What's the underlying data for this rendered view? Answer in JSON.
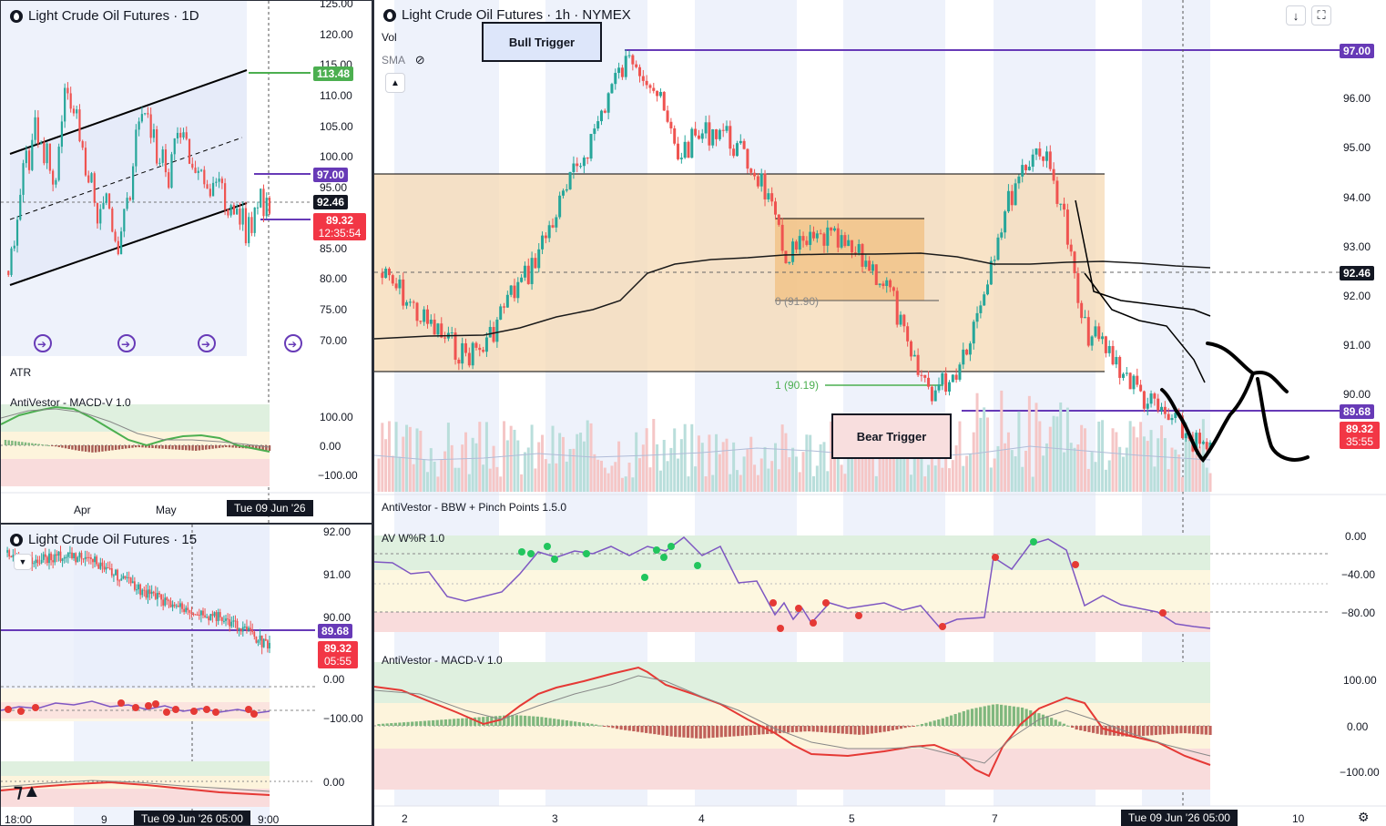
{
  "daily": {
    "title": "Light Crude Oil Futures · 1D",
    "yticks": [
      "125.00",
      "120.00",
      "115.00",
      "110.00",
      "105.00",
      "100.00",
      "95.00",
      "85.00",
      "80.00",
      "75.00",
      "70.00"
    ],
    "tags": {
      "target": "113.48",
      "level": "97.00",
      "crosshair": "92.46",
      "price": "89.32",
      "countdown": "12:35:54"
    },
    "atr_label": "ATR",
    "macd_label": "AntiVestor - MACD-V 1.0",
    "macd_ticks": [
      "100.00",
      "0.00",
      "−100.00"
    ],
    "xticks": [
      "Apr",
      "May"
    ],
    "time_badge": "Tue 09 Jun '26"
  },
  "m15": {
    "title": "Light Crude Oil Futures · 15",
    "yticks": [
      "92.00",
      "91.00",
      "90.00"
    ],
    "tags": {
      "level": "89.68",
      "price": "89.32",
      "countdown": "05:55"
    },
    "wr_ticks": [
      "0.00",
      "−100.00"
    ],
    "macd_ticks": [
      "0.00"
    ],
    "xticks": [
      "18:00",
      "9"
    ],
    "partial_time": "9:00",
    "time_badge": "Tue 09 Jun '26   05:00"
  },
  "main": {
    "title": "Light Crude Oil Futures · 1h · NYMEX",
    "vol_label": "Vol",
    "sma_label": "SMA",
    "bull_trigger": "Bull Trigger",
    "bear_trigger": "Bear Trigger",
    "fib_0": "0 (91.90)",
    "fib_1": "1 (90.19)",
    "yticks": [
      "96.00",
      "95.00",
      "94.00",
      "93.00",
      "92.00",
      "91.00",
      "90.00"
    ],
    "tags": {
      "level_top": "97.00",
      "crosshair": "92.46",
      "level": "89.68",
      "price": "89.32",
      "countdown": "35:55"
    },
    "bbw_label": "AntiVestor - BBW + Pinch Points 1.5.0",
    "wr_label": "AV W%R 1.0",
    "wr_ticks": [
      "0.00",
      "−40.00",
      "−80.00"
    ],
    "macd_label": "AntiVestor - MACD-V 1.0",
    "macd_ticks": [
      "100.00",
      "0.00",
      "−100.00"
    ],
    "xticks": [
      "2",
      "3",
      "4",
      "5",
      "7",
      "10"
    ],
    "time_badge": "Tue 09 Jun '26   05:00",
    "icons": {
      "download": "download-icon",
      "fullscreen": "fullscreen-icon",
      "collapse": "chevron-up-icon",
      "eye": "eye-off-icon",
      "settings": "settings-icon"
    }
  },
  "colors": {
    "up": "#26a69a",
    "down": "#ef5350",
    "level": "#673ab7",
    "target": "#4caf50",
    "zone": "#f5d3a8"
  }
}
